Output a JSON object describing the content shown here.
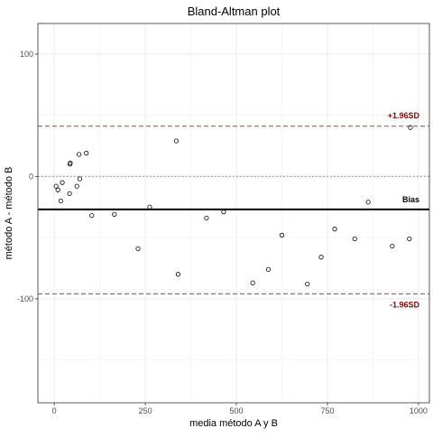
{
  "chart_data": {
    "type": "scatter",
    "title": "Bland-Altman plot",
    "xlabel": "media método A y B",
    "ylabel": "método A - método B",
    "xlim": [
      -45,
      1030
    ],
    "ylim": [
      -185,
      125
    ],
    "x_ticks": [
      0,
      250,
      500,
      750,
      1000
    ],
    "y_ticks": [
      100,
      0,
      -100
    ],
    "grid": true,
    "points": [
      {
        "x": 5,
        "y": -8
      },
      {
        "x": 10,
        "y": -11
      },
      {
        "x": 18,
        "y": -20
      },
      {
        "x": 22,
        "y": -5
      },
      {
        "x": 42,
        "y": -14
      },
      {
        "x": 43,
        "y": 10
      },
      {
        "x": 44,
        "y": 11
      },
      {
        "x": 62,
        "y": -8
      },
      {
        "x": 68,
        "y": 18
      },
      {
        "x": 70,
        "y": -2
      },
      {
        "x": 88,
        "y": 19
      },
      {
        "x": 103,
        "y": -32
      },
      {
        "x": 165,
        "y": -31
      },
      {
        "x": 230,
        "y": -59
      },
      {
        "x": 262,
        "y": -25
      },
      {
        "x": 335,
        "y": 29
      },
      {
        "x": 340,
        "y": -80
      },
      {
        "x": 418,
        "y": -34
      },
      {
        "x": 465,
        "y": -29
      },
      {
        "x": 545,
        "y": -87
      },
      {
        "x": 588,
        "y": -76
      },
      {
        "x": 625,
        "y": -48
      },
      {
        "x": 695,
        "y": -88
      },
      {
        "x": 733,
        "y": -66
      },
      {
        "x": 770,
        "y": -43
      },
      {
        "x": 825,
        "y": -51
      },
      {
        "x": 862,
        "y": -21
      },
      {
        "x": 928,
        "y": -57
      },
      {
        "x": 975,
        "y": -51
      },
      {
        "x": 978,
        "y": 40
      }
    ],
    "zero_line": 0,
    "bias": -27,
    "upper_loa": 41,
    "lower_loa": -96,
    "labels": {
      "upper": "+1.96SD",
      "bias": "Bias",
      "lower": "-1.96SD"
    },
    "colors": {
      "loa": "#c0392b",
      "loa_label": "#8b0000",
      "bias": "#000000",
      "zero": "#999999",
      "grid": "#ebebeb",
      "panel_border": "#333333"
    }
  }
}
